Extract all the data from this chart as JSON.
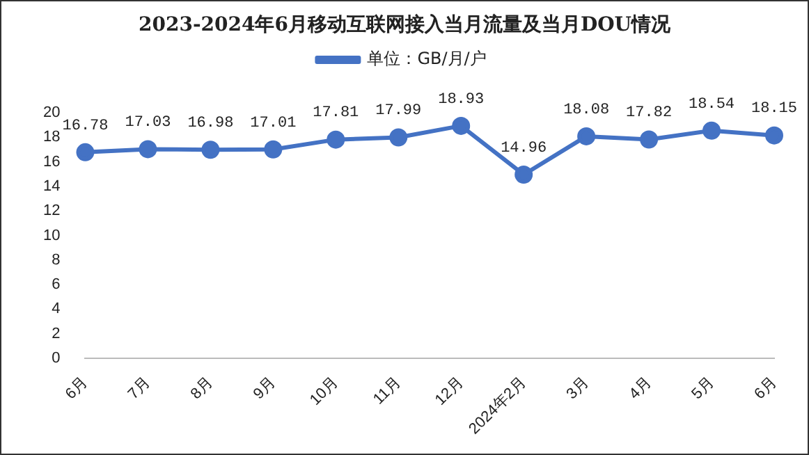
{
  "chart_data": {
    "type": "line",
    "title": "2023-2024年6月移动互联网接入当月流量及当月DOU情况",
    "categories": [
      "6月",
      "7月",
      "8月",
      "9月",
      "10月",
      "11月",
      "12月",
      "2024年2月",
      "3月",
      "4月",
      "5月",
      "6月"
    ],
    "series": [
      {
        "name": "单位：GB/月/户",
        "color": "#4472c4",
        "values": [
          16.78,
          17.03,
          16.98,
          17.01,
          17.81,
          17.99,
          18.93,
          14.96,
          18.08,
          17.82,
          18.54,
          18.15
        ]
      }
    ],
    "ylim": [
      0,
      20
    ],
    "yticks": [
      0,
      2,
      4,
      6,
      8,
      10,
      12,
      14,
      16,
      18,
      20
    ],
    "grid": false,
    "legend": "top",
    "marker": "circle",
    "line_style": "solid",
    "data_labels": true
  }
}
